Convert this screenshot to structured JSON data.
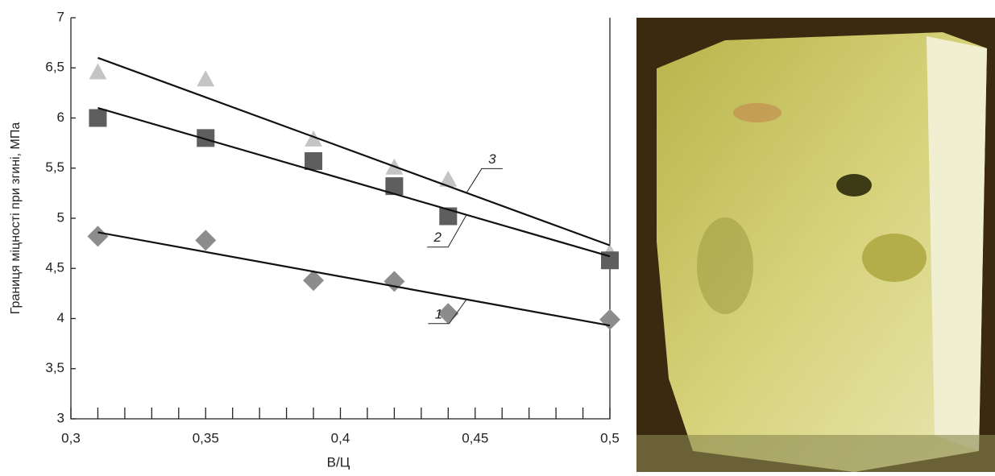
{
  "chart_data": {
    "type": "scatter",
    "xlabel": "В/Ц",
    "ylabel": "Границя міцності при згині, МПа",
    "x": [
      0.31,
      0.35,
      0.39,
      0.42,
      0.44,
      0.5
    ],
    "xlim": [
      0.3,
      0.5
    ],
    "xticks": [
      {
        "value": 0.3,
        "label": "0,3"
      },
      {
        "value": 0.35,
        "label": "0,35"
      },
      {
        "value": 0.4,
        "label": "0,4"
      },
      {
        "value": 0.45,
        "label": "0,45"
      },
      {
        "value": 0.5,
        "label": "0,5"
      }
    ],
    "xminorticks": [
      0.31,
      0.32,
      0.33,
      0.34,
      0.36,
      0.37,
      0.38,
      0.39,
      0.41,
      0.42,
      0.43,
      0.44,
      0.46,
      0.47,
      0.48,
      0.49
    ],
    "ylim": [
      3,
      7
    ],
    "yticks": [
      3,
      {
        "value": 3.5,
        "label": "3,5"
      },
      4,
      {
        "value": 4.5,
        "label": "4,5"
      },
      5,
      {
        "value": 5.5,
        "label": "5,5"
      },
      6,
      {
        "value": 6.5,
        "label": "6,5"
      },
      7
    ],
    "series": [
      {
        "name": "1",
        "color": "#8c8c8c",
        "marker": "diamond",
        "values": [
          4.82,
          4.78,
          4.38,
          4.37,
          4.05,
          3.99
        ],
        "trend": {
          "x": [
            0.31,
            0.5
          ],
          "y": [
            4.86,
            3.93
          ]
        }
      },
      {
        "name": "2",
        "color": "#5e5e5e",
        "marker": "square",
        "values": [
          6.0,
          5.8,
          5.57,
          5.32,
          5.02,
          4.58
        ],
        "trend": {
          "x": [
            0.31,
            0.5
          ],
          "y": [
            6.1,
            4.62
          ]
        }
      },
      {
        "name": "3",
        "color": "#c4c4c4",
        "marker": "triangle",
        "values": [
          6.45,
          6.38,
          5.78,
          5.5,
          5.38,
          4.65
        ],
        "trend": {
          "x": [
            0.31,
            0.5
          ],
          "y": [
            6.6,
            4.73
          ]
        }
      }
    ]
  }
}
